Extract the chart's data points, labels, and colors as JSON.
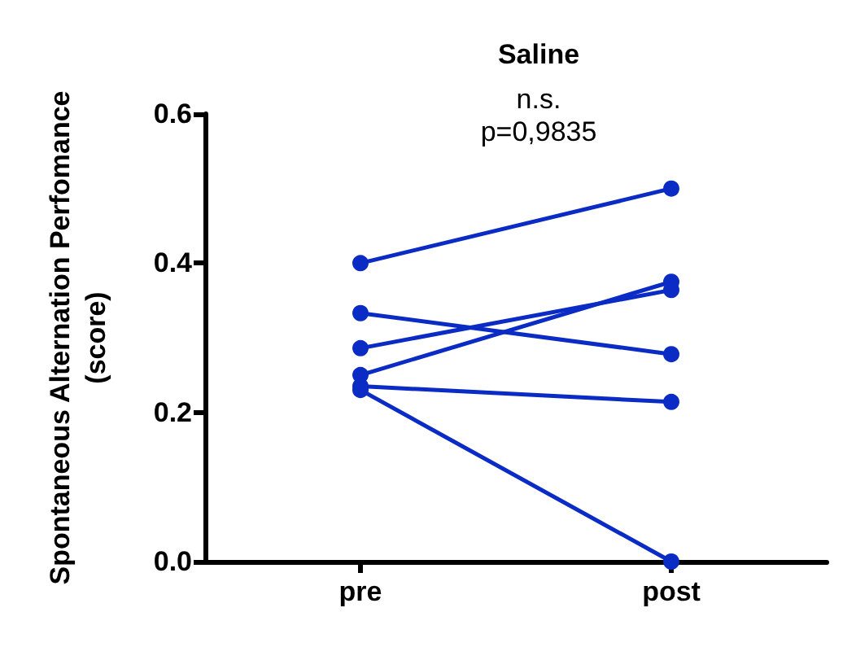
{
  "chart_data": {
    "type": "line",
    "title": "Saline",
    "ylabel": "Spontaneous Alternation Perfomance\n(score)",
    "annotations": [
      "n.s.",
      "p=0,9835"
    ],
    "categories": [
      "pre",
      "post"
    ],
    "series": [
      {
        "color": "#0a2bc4",
        "values": [
          0.4,
          0.5
        ]
      },
      {
        "color": "#0a2bc4",
        "values": [
          0.333,
          0.278
        ]
      },
      {
        "color": "#0a2bc4",
        "values": [
          0.286,
          0.364
        ]
      },
      {
        "color": "#0a2bc4",
        "values": [
          0.25,
          0.375
        ]
      },
      {
        "color": "#0a2bc4",
        "values": [
          0.235,
          0.214
        ]
      },
      {
        "color": "#0a2bc4",
        "values": [
          0.23,
          0
        ]
      }
    ],
    "ylim": [
      0,
      0.6
    ],
    "yticks": [
      {
        "value": 0,
        "label": "0.0"
      },
      {
        "value": 0.2,
        "label": "0.2"
      },
      {
        "value": 0.4,
        "label": "0.4"
      },
      {
        "value": 0.6,
        "label": "0.6"
      }
    ],
    "marker": "circle",
    "line_style": "solid",
    "grid": false
  }
}
